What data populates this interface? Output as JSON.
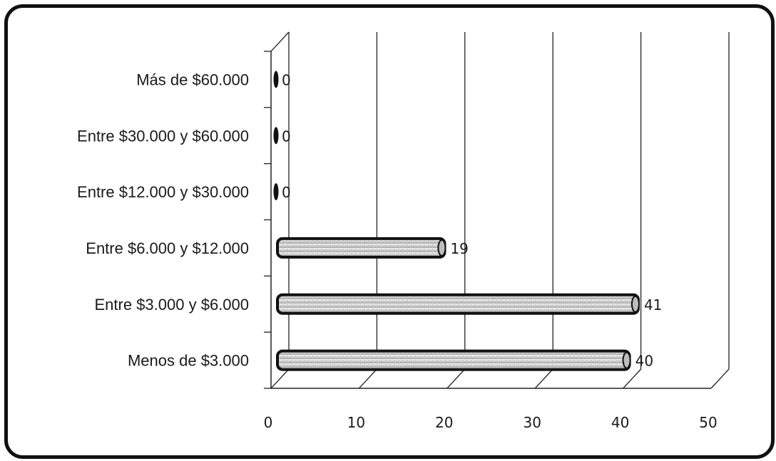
{
  "chart_data": {
    "type": "bar",
    "orientation": "horizontal",
    "categories": [
      "Menos de $3.000",
      "Entre $3.000 y $6.000",
      "Entre $6.000 y $12.000",
      "Entre $12.000 y $30.000",
      "Entre $30.000 y $60.000",
      "Más de $60.000"
    ],
    "values": [
      40,
      41,
      19,
      0,
      0,
      0
    ],
    "data_labels": [
      "40",
      "41",
      "19",
      "0",
      "0",
      "0"
    ],
    "xlim": [
      0,
      50
    ],
    "x_ticks": [
      "0",
      "10",
      "20",
      "30",
      "40",
      "50"
    ],
    "grid": true,
    "style": "3d-cylinder",
    "bar_color": "#d8d8d8"
  }
}
